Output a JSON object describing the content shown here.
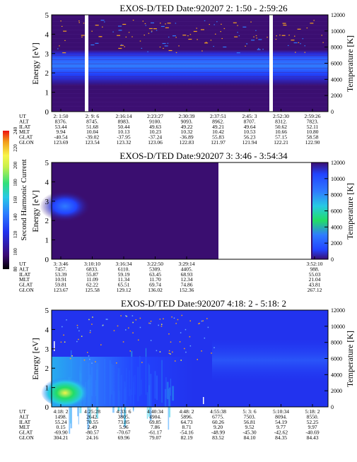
{
  "colors": {
    "purple": "#3a0a6b",
    "blue": "#2244ff",
    "light_blue": "#2f7bff",
    "green": "#22dd66",
    "yellow": "#f3f34a",
    "orange": "#f4a21e",
    "red": "#ee1111",
    "gap_white": "#ffffff"
  },
  "colorbar": {
    "label": "Second Harmonic Current",
    "ticks": [
      "80",
      "100",
      "120",
      "140",
      "160",
      "180",
      "200",
      "220",
      "240"
    ],
    "colors": [
      "#000000",
      "#3b0a74",
      "#2233ee",
      "#2b7cff",
      "#28c9e5",
      "#31e07a",
      "#c8f04a",
      "#f7f54a",
      "#f29d1a",
      "#ee1111"
    ]
  },
  "chart_data": [
    {
      "type": "heatmap",
      "title": "EXOS-D/TED   Date:920207  2: 1:50 - 2:59:26",
      "ylabel": "Energy [eV]",
      "ylabel_right": "Temperature [K]",
      "ylim": [
        0,
        5
      ],
      "ylim_right": [
        0,
        12000
      ],
      "yticks": [
        "0",
        "1",
        "2",
        "3",
        "4",
        "5"
      ],
      "yticks_right": [
        "0",
        "2000",
        "4000",
        "6000",
        "8000",
        "10000",
        "12000"
      ],
      "data_gaps_x": [
        0.105,
        0.81
      ],
      "rows": [
        {
          "label": "UT",
          "values": [
            "2: 1:50",
            "2: 9: 6",
            "2:16:14",
            "2:23:27",
            "2:30:39",
            "2:37:51",
            "2:45: 3",
            "2:52:30",
            "2:59:26"
          ]
        },
        {
          "label": "ALT",
          "values": [
            "8376.",
            "8745.",
            "8983.",
            "9100.",
            "9093.",
            "8962.",
            "8707.",
            "8312.",
            "7823."
          ]
        },
        {
          "label": "ILAT",
          "values": [
            "53.44",
            "51.68",
            "50.44",
            "49.63",
            "49.22",
            "49.21",
            "49.64",
            "50.62",
            "52.11"
          ]
        },
        {
          "label": "MLT",
          "values": [
            "9.94",
            "10.04",
            "10.13",
            "10.23",
            "10.32",
            "10.42",
            "10.53",
            "10.66",
            "10.80"
          ]
        },
        {
          "label": "GLAT",
          "values": [
            "-40.54",
            "-39.02",
            "-37.95",
            "-37.24",
            "-36.89",
            "55.83",
            "56.23",
            "57.15",
            "58.58"
          ]
        },
        {
          "label": "GLON",
          "values": [
            "123.69",
            "123.54",
            "123.32",
            "123.06",
            "122.83",
            "121.97",
            "121.94",
            "122.21",
            "122.90"
          ]
        }
      ]
    },
    {
      "type": "heatmap",
      "title": "EXOS-D/TED   Date:920207  3: 3:46 - 3:54:34",
      "ylabel": "Energy [eV]",
      "ylabel_right": "Temperature [K]",
      "ylim": [
        0,
        5
      ],
      "ylim_right": [
        0,
        12000
      ],
      "yticks": [
        "0",
        "1",
        "2",
        "3",
        "4",
        "5"
      ],
      "yticks_right": [
        "0",
        "2000",
        "4000",
        "6000",
        "8000",
        "10000",
        "12000"
      ],
      "data_gaps_x": [
        0.6
      ],
      "rows": [
        {
          "label": "UT",
          "values": [
            "3: 3:46",
            "3:10:10",
            "3:16:34",
            "3:22:50",
            "3:29:14",
            "",
            "",
            "3:52:10"
          ]
        },
        {
          "label": "ALT",
          "values": [
            "7457.",
            "6833.",
            "6110.",
            "5309.",
            "4405.",
            "",
            "",
            "988."
          ]
        },
        {
          "label": "ILAT",
          "values": [
            "53.39",
            "55.87",
            "59.19",
            "63.45",
            "68.93",
            "",
            "",
            "55.03"
          ]
        },
        {
          "label": "MLT",
          "values": [
            "10.91",
            "11.09",
            "11.34",
            "11.70",
            "12.34",
            "",
            "",
            "21.04"
          ]
        },
        {
          "label": "GLAT",
          "values": [
            "59.81",
            "62.22",
            "65.51",
            "69.74",
            "74.86",
            "",
            "",
            "43.81"
          ]
        },
        {
          "label": "GLON",
          "values": [
            "123.67",
            "125.58",
            "129.12",
            "136.02",
            "152.36",
            "",
            "",
            "267.12"
          ]
        }
      ]
    },
    {
      "type": "heatmap",
      "title": "EXOS-D/TED   Date:920207  4:18: 2 - 5:18: 2",
      "ylabel": "Energy [eV]",
      "ylabel_right": "Temperature [K]",
      "ylim": [
        0,
        5
      ],
      "ylim_right": [
        0,
        12000
      ],
      "yticks": [
        "0",
        "1",
        "2",
        "3",
        "4",
        "5"
      ],
      "yticks_right": [
        "0",
        "2000",
        "4000",
        "6000",
        "8000",
        "10000",
        "12000"
      ],
      "rows": [
        {
          "label": "UT",
          "values": [
            "4:18: 2",
            "4:25:28",
            "4:33: 6",
            "4:40:34",
            "4:48: 2",
            "4:55:38",
            "5: 3: 6",
            "5:10:34",
            "5:18: 2"
          ]
        },
        {
          "label": "ALT",
          "values": [
            "1498.",
            "2642.",
            "3805.",
            "4904.",
            "5896.",
            "6775.",
            "7503.",
            "8094.",
            "8550."
          ]
        },
        {
          "label": "ILAT",
          "values": [
            "55.24",
            "70.55",
            "73.85",
            "69.85",
            "64.73",
            "60.26",
            "56.81",
            "54.19",
            "52.25"
          ]
        },
        {
          "label": "MLT",
          "values": [
            "0.15",
            "2.49",
            "5.96",
            "7.86",
            "8.71",
            "9.20",
            "9.52",
            "9.77",
            "9.97"
          ]
        },
        {
          "label": "GLAT",
          "values": [
            "-69.90",
            "-80.57",
            "-70.67",
            "-61.17",
            "-54.16",
            "-48.99",
            "-45.30",
            "-42.62",
            "-40.69"
          ]
        },
        {
          "label": "GLON",
          "values": [
            "304.21",
            "24.16",
            "69.96",
            "79.07",
            "82.19",
            "83.52",
            "84.10",
            "84.35",
            "84.43"
          ]
        }
      ]
    }
  ]
}
